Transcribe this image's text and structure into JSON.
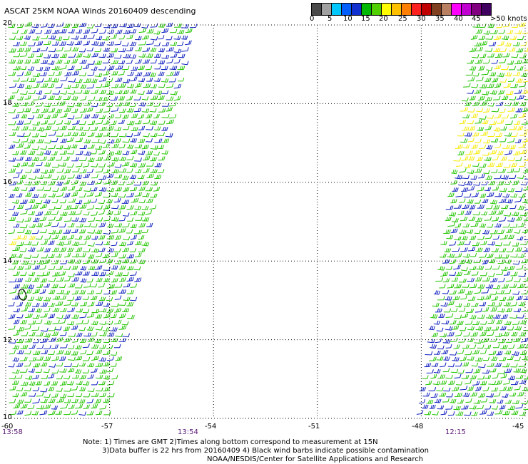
{
  "title": "ASCAT 25KM NOAA Winds 20160409 descending",
  "colorbar": {
    "colors": [
      "#4a4a4a",
      "#a0a0a0",
      "#00c8ff",
      "#0060ff",
      "#1030d0",
      "#00b800",
      "#50d000",
      "#ffff00",
      "#ffc000",
      "#ff8000",
      "#ff2020",
      "#c00000",
      "#804020",
      "#b88060",
      "#ff00ff",
      "#c000d0",
      "#800080",
      "#400060"
    ],
    "labels": [
      "0",
      "5",
      "10",
      "15",
      "20",
      "25",
      "30",
      "35",
      "40",
      "45",
      ">50 knots"
    ]
  },
  "axes": {
    "lon_labels": [
      "-60",
      "-57",
      "-54",
      "-51",
      "-48",
      "-45"
    ],
    "lat_labels": [
      "20",
      "18",
      "16",
      "14",
      "12",
      "10"
    ],
    "lon_range": [
      -60,
      -45
    ],
    "lat_range": [
      10,
      20
    ]
  },
  "times": [
    "13:58",
    "13:54",
    "12:15"
  ],
  "notes": {
    "line1": "Note: 1) Times are GMT 2)Times along bottom correspond to measurement at 15N",
    "line2": "3)Data buffer is 22 hrs from 20160409 4) Black wind barbs indicate possible contamination",
    "line3": "NOAA/NESDIS/Center for Satellite Applications and Research"
  },
  "barb_colors": {
    "green": "#22c400",
    "blue": "#0f1fbf",
    "yellow": "#f5ea00",
    "black": "#000000"
  }
}
